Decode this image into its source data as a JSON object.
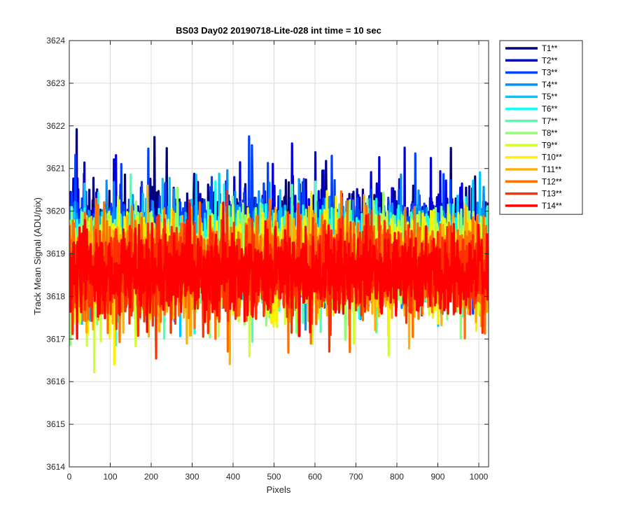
{
  "chart_data": {
    "type": "line",
    "title": "BS03 Day02 20190718-Lite-028 int time = 10 sec",
    "xlabel": "Pixels",
    "ylabel": "Track Mean Signal (ADU/pix)",
    "xlim": [
      0,
      1024
    ],
    "ylim": [
      3614,
      3624
    ],
    "xticks": [
      0,
      100,
      200,
      300,
      400,
      500,
      600,
      700,
      800,
      900,
      1000
    ],
    "yticks": [
      3614,
      3615,
      3616,
      3617,
      3618,
      3619,
      3620,
      3621,
      3622,
      3623,
      3624
    ],
    "grid": true,
    "legend_position": "outside-top-right",
    "series": [
      {
        "name": "T1**",
        "color": "#00007f",
        "mean": 3619.4,
        "amp": 1.6,
        "spike_up": 1.3,
        "spike_dn": 0.5
      },
      {
        "name": "T2**",
        "color": "#0000df",
        "mean": 3619.3,
        "amp": 1.55,
        "spike_up": 1.2,
        "spike_dn": 0.6
      },
      {
        "name": "T3**",
        "color": "#0040ff",
        "mean": 3619.2,
        "amp": 1.5,
        "spike_up": 1.1,
        "spike_dn": 0.7
      },
      {
        "name": "T4**",
        "color": "#0090ff",
        "mean": 3619.1,
        "amp": 1.5,
        "spike_up": 1.0,
        "spike_dn": 0.8
      },
      {
        "name": "T5**",
        "color": "#00c8ff",
        "mean": 3619.0,
        "amp": 1.45,
        "spike_up": 1.0,
        "spike_dn": 0.8
      },
      {
        "name": "T6**",
        "color": "#10ffef",
        "mean": 3618.95,
        "amp": 1.45,
        "spike_up": 0.9,
        "spike_dn": 0.9
      },
      {
        "name": "T7**",
        "color": "#50ffaf",
        "mean": 3618.9,
        "amp": 1.45,
        "spike_up": 0.9,
        "spike_dn": 0.9
      },
      {
        "name": "T8**",
        "color": "#8fff70",
        "mean": 3618.85,
        "amp": 1.5,
        "spike_up": 0.8,
        "spike_dn": 1.1
      },
      {
        "name": "T9**",
        "color": "#cfff30",
        "mean": 3618.8,
        "amp": 1.55,
        "spike_up": 0.8,
        "spike_dn": 1.4
      },
      {
        "name": "T10**",
        "color": "#ffef00",
        "mean": 3618.75,
        "amp": 1.5,
        "spike_up": 0.8,
        "spike_dn": 1.0
      },
      {
        "name": "T11**",
        "color": "#ffb000",
        "mean": 3618.7,
        "amp": 1.5,
        "spike_up": 0.8,
        "spike_dn": 1.0
      },
      {
        "name": "T12**",
        "color": "#ff7000",
        "mean": 3618.65,
        "amp": 1.55,
        "spike_up": 0.9,
        "spike_dn": 1.1
      },
      {
        "name": "T13**",
        "color": "#ff3000",
        "mean": 3618.6,
        "amp": 1.5,
        "spike_up": 0.8,
        "spike_dn": 1.0
      },
      {
        "name": "T14**",
        "color": "#ff0000",
        "mean": 3618.55,
        "amp": 1.3,
        "spike_up": 0.7,
        "spike_dn": 0.8
      }
    ],
    "points_per_series": 1024
  }
}
